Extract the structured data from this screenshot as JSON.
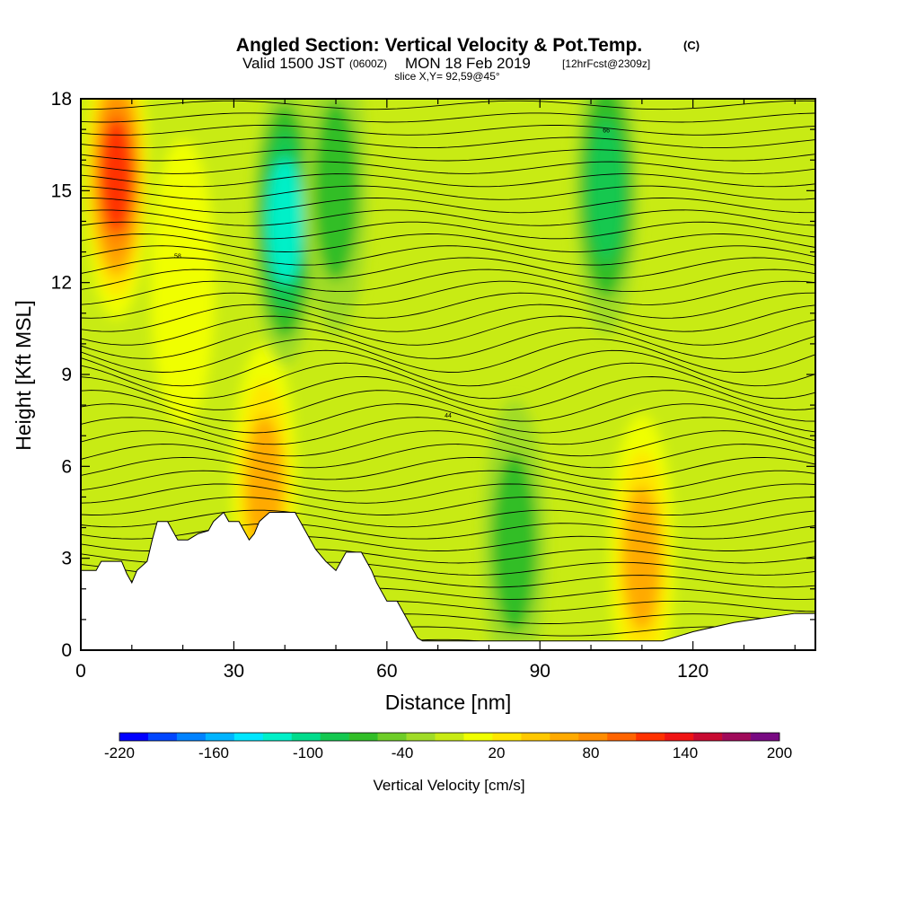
{
  "header": {
    "title": "Angled Section: Vertical Velocity & Pot.Temp.",
    "title_unit": "(C)",
    "valid_prefix": "Valid 1500 JST",
    "valid_zulu": "(0600Z)",
    "valid_date": "MON 18 Feb 2019",
    "forecast": "[12hrFcst@2309z]",
    "slice": "slice X,Y= 92,59@45°"
  },
  "chart_data": {
    "type": "heatmap",
    "title": "Angled Section: Vertical Velocity & Pot.Temp. (C)",
    "xlabel": "Distance [nm]",
    "ylabel": "Height [Kft MSL]",
    "xlim": [
      0,
      144
    ],
    "ylim": [
      0,
      18
    ],
    "x_ticks": [
      0,
      30,
      60,
      90,
      120
    ],
    "x_tick_labels": [
      "0",
      "30",
      "60",
      "90",
      "120"
    ],
    "y_ticks": [
      0,
      3,
      6,
      9,
      12,
      15,
      18
    ],
    "y_tick_labels": [
      "0",
      "3",
      "6",
      "9",
      "12",
      "15",
      "18"
    ],
    "colorbar": {
      "label": "Vertical Velocity [cm/s]",
      "min": -220,
      "max": 200,
      "step": 20,
      "tick_values": [
        -220,
        -160,
        -100,
        -40,
        20,
        80,
        140,
        200
      ],
      "tick_labels": [
        "-220",
        "-160",
        "-100",
        "-40",
        "20",
        "80",
        "140",
        "200"
      ],
      "colors": [
        "#0000ff",
        "#0046ff",
        "#0082ff",
        "#00b4ff",
        "#00e6ff",
        "#00f0c8",
        "#00dc8c",
        "#14c850",
        "#32be28",
        "#6ecd28",
        "#a0dc28",
        "#c8eb14",
        "#f0ff00",
        "#ffe600",
        "#ffc800",
        "#ffaa00",
        "#ff8c00",
        "#ff6400",
        "#ff3200",
        "#f01414",
        "#c80a32",
        "#a00a5a",
        "#780a82"
      ]
    },
    "terrain_profile": {
      "x": [
        0,
        3,
        4,
        8,
        9,
        10,
        11,
        13,
        14,
        15,
        17,
        19,
        21,
        23,
        25,
        26,
        28,
        29,
        31,
        33,
        34,
        35,
        37,
        42,
        43,
        44,
        45,
        46,
        48,
        50,
        51,
        52,
        55,
        56,
        57,
        58,
        59,
        60,
        61,
        62,
        63,
        64,
        65,
        66,
        67,
        68,
        69,
        70,
        100,
        113,
        114,
        120,
        128,
        140,
        144
      ],
      "y": [
        2.6,
        2.6,
        2.9,
        2.9,
        2.5,
        2.2,
        2.6,
        2.9,
        3.6,
        4.2,
        4.2,
        3.6,
        3.6,
        3.8,
        3.9,
        4.2,
        4.5,
        4.2,
        4.2,
        3.6,
        3.8,
        4.2,
        4.5,
        4.5,
        4.2,
        3.9,
        3.6,
        3.3,
        2.9,
        2.6,
        2.9,
        3.2,
        3.2,
        2.9,
        2.6,
        2.2,
        1.9,
        1.6,
        1.6,
        1.6,
        1.3,
        1.0,
        0.7,
        0.4,
        0.3,
        0.3,
        0.3,
        0.3,
        0.3,
        0.3,
        0.3,
        0.6,
        0.9,
        1.2,
        1.2
      ]
    },
    "updraft_cores_cm_s": [
      {
        "x": 7,
        "z": 15.5,
        "w": 140
      },
      {
        "x": 36,
        "z": 5.3,
        "w": 80
      },
      {
        "x": 20,
        "z": 12,
        "w": 40
      },
      {
        "x": 110,
        "z": 3,
        "w": 90
      }
    ],
    "downdraft_cores_cm_s": [
      {
        "x": 40,
        "z": 14,
        "w": -130
      },
      {
        "x": 103,
        "z": 15,
        "w": -80
      },
      {
        "x": 85,
        "z": 3.5,
        "w": -50
      },
      {
        "x": 50,
        "z": 15,
        "w": -60
      }
    ],
    "theta_contours_C": {
      "min": -14,
      "max": 72,
      "interval": 2,
      "label_samples": [
        {
          "value": 58,
          "x": 19,
          "z": 12.8
        },
        {
          "value": 44,
          "x": 72,
          "z": 7.6
        },
        {
          "value": 66,
          "x": 103,
          "z": 16.9
        }
      ]
    }
  }
}
